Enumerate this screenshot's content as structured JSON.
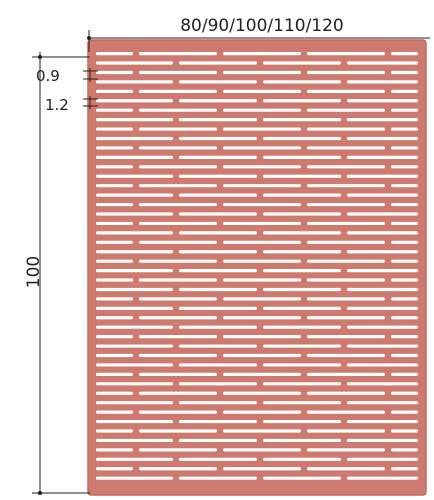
{
  "dimensions": {
    "width_label": "80/90/100/110/120",
    "height_label": "100",
    "gap_label": "0.9",
    "bar_label": "1.2"
  },
  "colors": {
    "panel": "#cf7a6e",
    "panel_edge": "#c26a5e",
    "slot": "#ffffff",
    "dimension_line": "#222222",
    "text": "#222222"
  },
  "icons": {
    "width_dimension": "width-dimension-line",
    "height_dimension": "height-dimension-line",
    "detail_markers": "detail-dimension-markers"
  }
}
